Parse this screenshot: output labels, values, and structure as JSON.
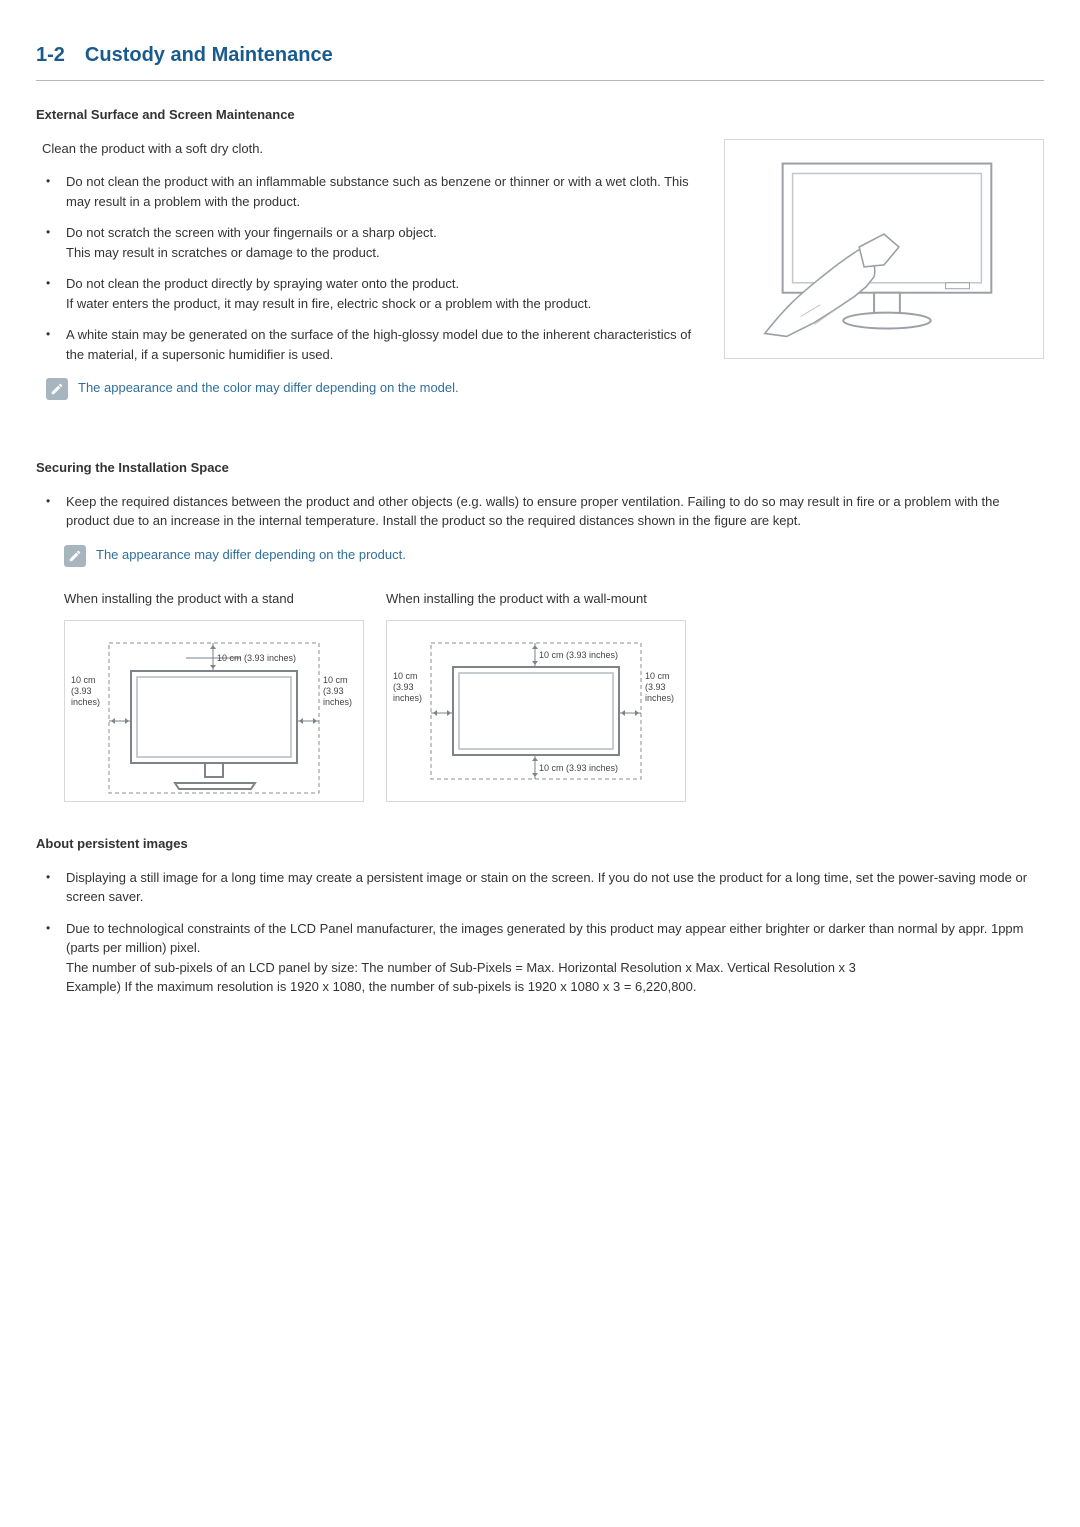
{
  "colors": {
    "heading": "#1a5b8f",
    "rule": "#b8b8b8",
    "body_text": "#333333",
    "note_text": "#2f6f9b",
    "note_icon_bg": "#a7b5bf",
    "note_icon_fg": "#ffffff",
    "fig_border": "#d8d8d8"
  },
  "typography": {
    "heading_size_pt": 15,
    "body_size_pt": 10,
    "subheading_weight": "bold"
  },
  "section": {
    "number": "1-2",
    "title": "Custody and Maintenance"
  },
  "sub1": {
    "title": "External Surface and Screen Maintenance",
    "intro": "Clean the product with a soft dry cloth.",
    "bullets": [
      "Do not clean the product with an inflammable substance such as benzene or thinner or with a wet cloth. This may result in a problem with the product.",
      "Do not scratch the screen with your fingernails or a sharp object.\nThis may result in scratches or damage to the product.",
      "Do not clean the product directly by spraying water onto the product.\nIf water enters the product, it may result in fire, electric shock or a problem with the product.",
      "A white stain may be generated on the surface of the high-glossy model due to the inherent characteristics of the material, if a supersonic humidifier is used."
    ],
    "note": "The appearance and the color may differ depending on the model."
  },
  "sub2": {
    "title": "Securing the Installation Space",
    "bullets": [
      "Keep the required distances between the product and other objects (e.g. walls) to ensure proper ventilation. Failing to do so may result in fire or a problem with the product due to an increase in the internal temperature. Install the product so the required distances shown in the figure are kept."
    ],
    "note": "The appearance may differ depending on the product.",
    "fig1_label": "When installing the product with a stand",
    "fig2_label": "When installing the product with a wall-mount",
    "clearance_top": "10 cm (3.93 inches)",
    "clearance_left": "10 cm\n(3.93\ninches)",
    "clearance_right": "10 cm\n(3.93\ninches)",
    "clearance_bottom": "10 cm (3.93 inches)"
  },
  "sub3": {
    "title": "About persistent images",
    "bullets": [
      "Displaying a still image for a long time may create a persistent image or stain on the screen. If you do not use the product for a long time, set the power-saving mode or screen saver.",
      "Due to technological constraints of the LCD Panel manufacturer, the images generated by this product may appear either brighter or darker than normal by appr. 1ppm (parts per million) pixel.\nThe number of sub-pixels of an LCD panel by size:  The number of Sub-Pixels = Max. Horizontal Resolution x Max. Vertical Resolution x 3\nExample) If the maximum resolution is 1920 x 1080, the number of sub-pixels is 1920 x 1080 x 3 = 6,220,800."
    ]
  }
}
